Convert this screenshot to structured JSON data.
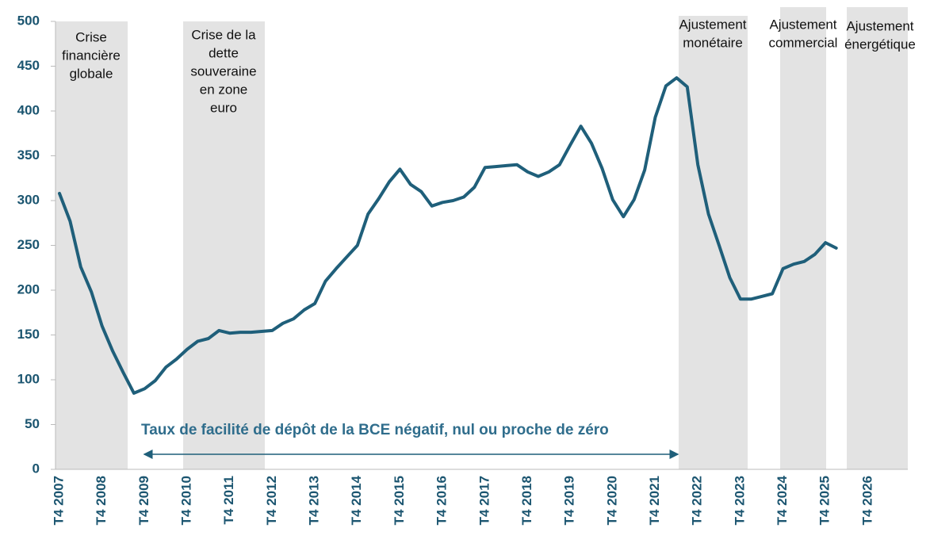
{
  "chart_data": {
    "type": "line",
    "categories": [
      "T4 2007",
      null,
      null,
      null,
      "T4 2008",
      null,
      null,
      null,
      "T4 2009",
      null,
      null,
      null,
      "T4 2010",
      null,
      null,
      null,
      "T4 2011",
      null,
      null,
      null,
      "T4 2012",
      null,
      null,
      null,
      "T4 2013",
      null,
      null,
      null,
      "T4 2014",
      null,
      null,
      null,
      "T4 2015",
      null,
      null,
      null,
      "T4 2016",
      null,
      null,
      null,
      "T4 2017",
      null,
      null,
      null,
      "T4 2018",
      null,
      null,
      null,
      "T4 2019",
      null,
      null,
      null,
      "T4 2020",
      null,
      null,
      null,
      "T4 2021",
      null,
      null,
      null,
      "T4 2022",
      null,
      null,
      null,
      "T4 2023",
      null,
      null,
      null,
      "T4 2024",
      null,
      null,
      null,
      "T4 2025",
      null,
      null,
      null,
      "T4 2026"
    ],
    "series": [
      {
        "color": "#1f5f7a",
        "values": [
          308,
          277,
          226,
          198,
          160,
          132,
          108,
          85,
          90,
          99,
          114,
          123,
          134,
          143,
          146,
          155,
          152,
          153,
          153,
          154,
          155,
          163,
          168,
          178,
          185,
          210,
          224,
          237,
          250,
          285,
          302,
          321,
          335,
          318,
          310,
          294,
          298,
          300,
          304,
          315,
          337,
          338,
          339,
          340,
          332,
          327,
          332,
          340,
          362,
          383,
          364,
          336,
          301,
          282,
          301,
          334,
          393,
          428,
          437,
          427,
          340,
          285,
          250,
          214,
          190,
          190,
          193,
          196,
          224,
          229,
          232,
          240,
          253,
          247,
          null,
          null,
          null
        ]
      }
    ],
    "ylim": [
      0,
      500
    ],
    "yticks": [
      0,
      50,
      100,
      150,
      200,
      250,
      300,
      350,
      400,
      450,
      500
    ],
    "regions": [
      {
        "label": [
          "Crise",
          "financière",
          "globale"
        ]
      },
      {
        "label": [
          "Crise de la",
          "dette",
          "souveraine",
          "en zone",
          "euro"
        ]
      },
      {
        "label": [
          "Ajustement",
          "monétaire"
        ]
      },
      {
        "label": [
          "Ajustement",
          "commercial"
        ]
      },
      {
        "label": [
          "Ajustement",
          "énergétique"
        ]
      }
    ],
    "annotation": "Taux de facilité de dépôt de la BCE négatif, nul ou proche de zéro"
  }
}
